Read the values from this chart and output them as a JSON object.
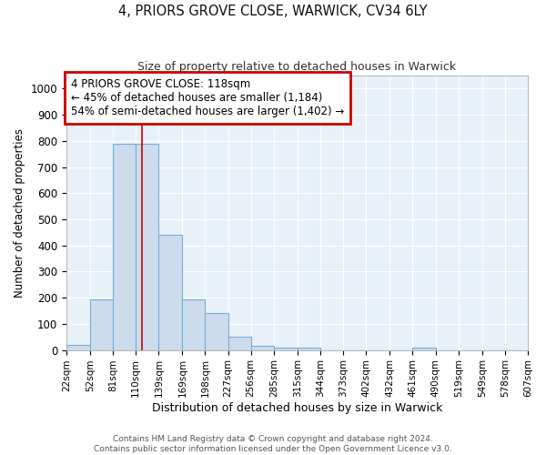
{
  "title": "4, PRIORS GROVE CLOSE, WARWICK, CV34 6LY",
  "subtitle": "Size of property relative to detached houses in Warwick",
  "xlabel": "Distribution of detached houses by size in Warwick",
  "ylabel": "Number of detached properties",
  "bar_color": "#ccdcec",
  "bar_edge_color": "#7aafd4",
  "background_color": "#e8f0f8",
  "grid_color": "#ffffff",
  "red_line_x": 118,
  "annotation_line1": "4 PRIORS GROVE CLOSE: 118sqm",
  "annotation_line2": "← 45% of detached houses are smaller (1,184)",
  "annotation_line3": "54% of semi-detached houses are larger (1,402) →",
  "annotation_box_color": "#cc0000",
  "bin_edges": [
    22,
    52,
    81,
    110,
    139,
    169,
    198,
    227,
    256,
    285,
    315,
    344,
    373,
    402,
    432,
    461,
    490,
    519,
    549,
    578,
    607
  ],
  "bar_heights": [
    20,
    195,
    790,
    790,
    440,
    195,
    140,
    50,
    15,
    10,
    10,
    0,
    0,
    0,
    0,
    10,
    0,
    0,
    0,
    0
  ],
  "ylim": [
    0,
    1050
  ],
  "yticks": [
    0,
    100,
    200,
    300,
    400,
    500,
    600,
    700,
    800,
    900,
    1000
  ],
  "figsize": [
    6.0,
    5.0
  ],
  "dpi": 100,
  "footer1": "Contains HM Land Registry data © Crown copyright and database right 2024.",
  "footer2": "Contains public sector information licensed under the Open Government Licence v3.0."
}
